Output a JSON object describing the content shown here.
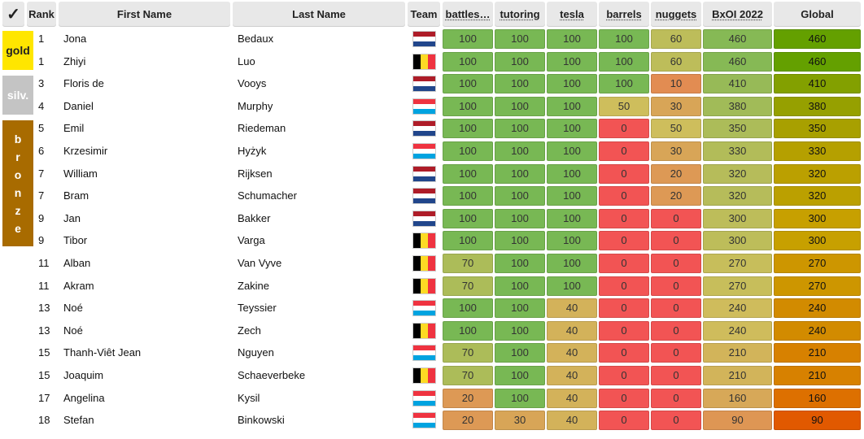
{
  "headers": {
    "check": "✓",
    "rank": "Rank",
    "first_name": "First Name",
    "last_name": "Last Name",
    "team": "Team",
    "battles": "battles…",
    "tutoring": "tutoring",
    "tesla": "tesla",
    "barrels": "barrels",
    "nuggets": "nuggets",
    "bxoi": "BxOI 2022",
    "global": "Global"
  },
  "medals": {
    "gold": "gold",
    "silver": "silv.",
    "bronze": [
      "b",
      "r",
      "o",
      "n",
      "z",
      "e"
    ]
  },
  "flag_colors": {
    "NL": [
      "#ae1c28",
      "#ffffff",
      "#21468b"
    ],
    "LU": [
      "#ef3340",
      "#ffffff",
      "#00a3e0"
    ],
    "BE": [
      "#000000",
      "#fdda24",
      "#ef3340"
    ]
  },
  "rows": [
    {
      "rank": "1",
      "first": "Jona",
      "last": "Bedaux",
      "team": "NL",
      "scores": [
        "100",
        "100",
        "100",
        "100",
        "60",
        "460"
      ],
      "global": "460"
    },
    {
      "rank": "1",
      "first": "Zhiyi",
      "last": "Luo",
      "team": "BE",
      "scores": [
        "100",
        "100",
        "100",
        "100",
        "60",
        "460"
      ],
      "global": "460"
    },
    {
      "rank": "3",
      "first": "Floris de",
      "last": "Vooys",
      "team": "NL",
      "scores": [
        "100",
        "100",
        "100",
        "100",
        "10",
        "410"
      ],
      "global": "410"
    },
    {
      "rank": "4",
      "first": "Daniel",
      "last": "Murphy",
      "team": "LU",
      "scores": [
        "100",
        "100",
        "100",
        "50",
        "30",
        "380"
      ],
      "global": "380"
    },
    {
      "rank": "5",
      "first": "Emil",
      "last": "Riedeman",
      "team": "NL",
      "scores": [
        "100",
        "100",
        "100",
        "0",
        "50",
        "350"
      ],
      "global": "350"
    },
    {
      "rank": "6",
      "first": "Krzesimir",
      "last": "Hyżyk",
      "team": "LU",
      "scores": [
        "100",
        "100",
        "100",
        "0",
        "30",
        "330"
      ],
      "global": "330"
    },
    {
      "rank": "7",
      "first": "William",
      "last": "Rijksen",
      "team": "NL",
      "scores": [
        "100",
        "100",
        "100",
        "0",
        "20",
        "320"
      ],
      "global": "320"
    },
    {
      "rank": "7",
      "first": "Bram",
      "last": "Schumacher",
      "team": "NL",
      "scores": [
        "100",
        "100",
        "100",
        "0",
        "20",
        "320"
      ],
      "global": "320"
    },
    {
      "rank": "9",
      "first": "Jan",
      "last": "Bakker",
      "team": "NL",
      "scores": [
        "100",
        "100",
        "100",
        "0",
        "0",
        "300"
      ],
      "global": "300"
    },
    {
      "rank": "9",
      "first": "Tibor",
      "last": "Varga",
      "team": "BE",
      "scores": [
        "100",
        "100",
        "100",
        "0",
        "0",
        "300"
      ],
      "global": "300"
    },
    {
      "rank": "11",
      "first": "Alban",
      "last": "Van Vyve",
      "team": "BE",
      "scores": [
        "70",
        "100",
        "100",
        "0",
        "0",
        "270"
      ],
      "global": "270"
    },
    {
      "rank": "11",
      "first": "Akram",
      "last": "Zakine",
      "team": "BE",
      "scores": [
        "70",
        "100",
        "100",
        "0",
        "0",
        "270"
      ],
      "global": "270"
    },
    {
      "rank": "13",
      "first": "Noé",
      "last": "Teyssier",
      "team": "LU",
      "scores": [
        "100",
        "100",
        "40",
        "0",
        "0",
        "240"
      ],
      "global": "240"
    },
    {
      "rank": "13",
      "first": "Noé",
      "last": "Zech",
      "team": "BE",
      "scores": [
        "100",
        "100",
        "40",
        "0",
        "0",
        "240"
      ],
      "global": "240"
    },
    {
      "rank": "15",
      "first": "Thanh-Viêt Jean",
      "last": "Nguyen",
      "team": "LU",
      "scores": [
        "70",
        "100",
        "40",
        "0",
        "0",
        "210"
      ],
      "global": "210"
    },
    {
      "rank": "15",
      "first": "Joaquim",
      "last": "Schaeverbeke",
      "team": "BE",
      "scores": [
        "70",
        "100",
        "40",
        "0",
        "0",
        "210"
      ],
      "global": "210"
    },
    {
      "rank": "17",
      "first": "Angelina",
      "last": "Kysil",
      "team": "LU",
      "scores": [
        "20",
        "100",
        "40",
        "0",
        "0",
        "160"
      ],
      "global": "160"
    },
    {
      "rank": "18",
      "first": "Stefan",
      "last": "Binkowski",
      "team": "LU",
      "scores": [
        "20",
        "30",
        "40",
        "0",
        "0",
        "90"
      ],
      "global": "90"
    }
  ]
}
